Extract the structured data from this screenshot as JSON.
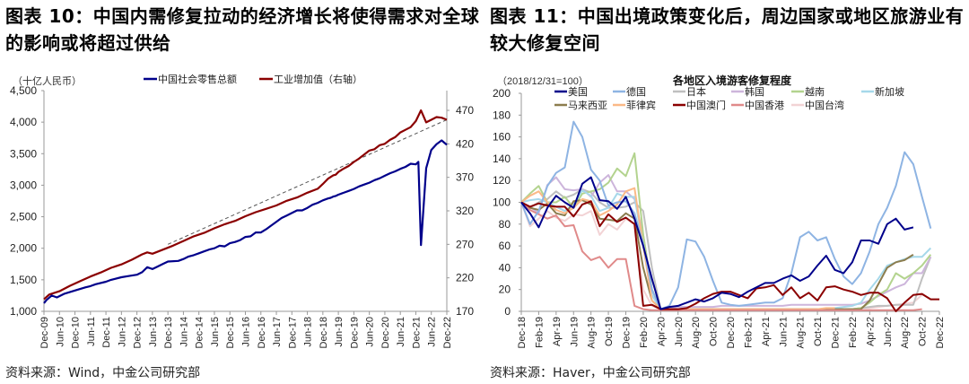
{
  "figures": [
    {
      "title_line1": "图表 10：中国内需修复拉动的经济增长将使得需求对全球",
      "title_line2": "的影响或将超过供给",
      "source": "资料来源：Wind，中金公司研究部"
    },
    {
      "title_line1": "图表 11：中国出境政策变化后，周边国家或地区旅游业有",
      "title_line2": "较大修复空间",
      "source": "资料来源：Haver，中金公司研究部"
    }
  ],
  "chart_data": [
    {
      "type": "line",
      "title": "",
      "unit_label": "（十亿人民币）",
      "ylim": [
        1000,
        4500
      ],
      "y_ticks": [
        "1,000",
        "1,500",
        "2,000",
        "2,500",
        "3,000",
        "3,500",
        "4,000",
        "4,500"
      ],
      "y2lim": [
        170,
        490
      ],
      "y2_ticks": [
        "170",
        "220",
        "270",
        "320",
        "370",
        "420",
        "470"
      ],
      "x_ticks": [
        "Dec-09",
        "Jun-10",
        "Dec-10",
        "Jun-11",
        "Dec-11",
        "Jun-12",
        "Dec-12",
        "Jun-13",
        "Dec-13",
        "Jun-14",
        "Dec-14",
        "Jun-15",
        "Dec-15",
        "Jun-16",
        "Dec-16",
        "Jun-17",
        "Dec-17",
        "Jun-18",
        "Dec-18",
        "Jun-19",
        "Dec-19",
        "Jun-20",
        "Dec-20",
        "Jun-21",
        "Dec-21",
        "Jun-22",
        "Dec-22"
      ],
      "legend_position": "top",
      "series": [
        {
          "name": "中国社会零售总额",
          "axis": "left",
          "color": "#00008B",
          "x": [
            0,
            1,
            3,
            5,
            8,
            12,
            16,
            18,
            20,
            24,
            26,
            30,
            33,
            36,
            38,
            40,
            42,
            44,
            46,
            48,
            52,
            54,
            56,
            58,
            60,
            62,
            64,
            66,
            68,
            70,
            72,
            74,
            76,
            78,
            80,
            82,
            84,
            86,
            88,
            90,
            92,
            94,
            96,
            98,
            100,
            102,
            104,
            106,
            108,
            110,
            111,
            112,
            113,
            114,
            116,
            118,
            120,
            122,
            124,
            126,
            128,
            130,
            132,
            134,
            136,
            138,
            140,
            142,
            144,
            145,
            146,
            148,
            150,
            152,
            154,
            156
          ],
          "y": [
            1130,
            1180,
            1250,
            1220,
            1280,
            1330,
            1380,
            1400,
            1430,
            1470,
            1500,
            1540,
            1560,
            1580,
            1620,
            1700,
            1670,
            1710,
            1750,
            1790,
            1800,
            1830,
            1870,
            1890,
            1920,
            1950,
            1980,
            2000,
            2040,
            2030,
            2080,
            2100,
            2130,
            2180,
            2190,
            2250,
            2250,
            2300,
            2360,
            2420,
            2480,
            2520,
            2560,
            2600,
            2600,
            2640,
            2690,
            2720,
            2760,
            2790,
            2800,
            2820,
            2830,
            2850,
            2880,
            2910,
            2940,
            2980,
            3010,
            3040,
            3080,
            3110,
            3150,
            3190,
            3220,
            3260,
            3290,
            3340,
            3330,
            3370,
            2050,
            3270,
            3560,
            3650,
            3710,
            3640
          ]
        },
        {
          "name": "工业增加值（右轴）",
          "axis": "right",
          "color": "#8B0000",
          "x": [
            0,
            2,
            6,
            10,
            14,
            18,
            22,
            26,
            30,
            34,
            38,
            40,
            42,
            46,
            50,
            54,
            58,
            62,
            66,
            70,
            74,
            78,
            82,
            86,
            90,
            94,
            98,
            102,
            106,
            108,
            110,
            112,
            113,
            114,
            116,
            118,
            120,
            122,
            124,
            126,
            128,
            130,
            132,
            134,
            136,
            138,
            140,
            142,
            144,
            146,
            148,
            150,
            152,
            154,
            156
          ],
          "y": [
            188,
            195,
            200,
            208,
            215,
            222,
            228,
            235,
            240,
            247,
            255,
            258,
            256,
            262,
            268,
            275,
            282,
            287,
            294,
            300,
            305,
            312,
            318,
            323,
            328,
            335,
            340,
            347,
            353,
            360,
            368,
            373,
            374,
            378,
            383,
            387,
            393,
            398,
            404,
            410,
            412,
            418,
            420,
            426,
            430,
            437,
            441,
            445,
            454,
            470,
            452,
            456,
            460,
            459,
            456
          ]
        },
        {
          "name": "trend",
          "axis": "right",
          "color": "#555555",
          "x": [
            48,
            156
          ],
          "y": [
            270,
            456
          ]
        }
      ]
    },
    {
      "type": "line",
      "title": "各地区入境游客修复程度",
      "unit_label": "（2018/12/31=100）",
      "ylim": [
        0,
        200
      ],
      "y_ticks": [
        "0",
        "20",
        "40",
        "60",
        "80",
        "100",
        "120",
        "140",
        "160",
        "180",
        "200"
      ],
      "x_ticks": [
        "Dec-18",
        "Feb-19",
        "Apr-19",
        "Jun-19",
        "Aug-19",
        "Oct-19",
        "Dec-19",
        "Feb-20",
        "Apr-20",
        "Jun-20",
        "Aug-20",
        "Oct-20",
        "Dec-20",
        "Feb-21",
        "Apr-21",
        "Jun-21",
        "Aug-21",
        "Oct-21",
        "Dec-21",
        "Feb-22",
        "Apr-22",
        "Jun-22",
        "Aug-22",
        "Oct-22",
        "Dec-22"
      ],
      "legend_position": "top",
      "series": [
        {
          "name": "美国",
          "color": "#00008B",
          "values": [
            100,
            90,
            77,
            95,
            106,
            100,
            95,
            117,
            123,
            102,
            101,
            94,
            105,
            85,
            60,
            30,
            2,
            4,
            5,
            8,
            11,
            9,
            12,
            17,
            16,
            13,
            18,
            22,
            26,
            26,
            30,
            33,
            28,
            32,
            42,
            51,
            38,
            35,
            45,
            65,
            65,
            62,
            80,
            85,
            75,
            77
          ]
        },
        {
          "name": "德国",
          "color": "#8EB4E3",
          "values": [
            100,
            80,
            92,
            115,
            127,
            132,
            174,
            160,
            130,
            120,
            97,
            100,
            101,
            90,
            62,
            20,
            2,
            5,
            22,
            66,
            64,
            50,
            28,
            8,
            6,
            5,
            6,
            7,
            8,
            8,
            12,
            35,
            68,
            73,
            65,
            68,
            48,
            32,
            25,
            35,
            55,
            80,
            95,
            115,
            146,
            135,
            105,
            76
          ]
        },
        {
          "name": "日本",
          "color": "#BFBFBF",
          "values": [
            100,
            95,
            100,
            103,
            110,
            104,
            107,
            112,
            109,
            100,
            95,
            95,
            96,
            100,
            92,
            40,
            2,
            2,
            2,
            2,
            2,
            2,
            2,
            2,
            2,
            2,
            2,
            2,
            2,
            2,
            2,
            2,
            2,
            2,
            2,
            2,
            2,
            2,
            2,
            3,
            4,
            5,
            5,
            6,
            6,
            6,
            30,
            50
          ]
        },
        {
          "name": "韩国",
          "color": "#CDB5DB",
          "values": [
            100,
            96,
            90,
            116,
            123,
            112,
            111,
            112,
            105,
            118,
            125,
            110,
            110,
            103,
            70,
            20,
            2,
            3,
            4,
            4,
            4,
            4,
            4,
            5,
            5,
            5,
            5,
            5,
            5,
            5,
            5,
            6,
            6,
            6,
            6,
            6,
            6,
            6,
            6,
            7,
            10,
            14,
            18,
            22,
            25,
            35,
            35,
            50
          ]
        },
        {
          "name": "越南",
          "color": "#B3D38E",
          "values": [
            100,
            108,
            115,
            100,
            100,
            105,
            95,
            108,
            110,
            112,
            118,
            131,
            124,
            145,
            70,
            20,
            2,
            2,
            2,
            2,
            2,
            2,
            2,
            2,
            2,
            2,
            2,
            2,
            2,
            2,
            2,
            2,
            2,
            2,
            2,
            2,
            2,
            2,
            2,
            3,
            8,
            15,
            20,
            35,
            30,
            35,
            42,
            52
          ]
        },
        {
          "name": "新加坡",
          "color": "#A6D8EA",
          "values": [
            100,
            102,
            103,
            100,
            96,
            92,
            98,
            111,
            106,
            92,
            95,
            108,
            105,
            105,
            60,
            15,
            2,
            2,
            2,
            2,
            2,
            2,
            2,
            2,
            2,
            2,
            2,
            2,
            2,
            2,
            2,
            2,
            2,
            2,
            2,
            2,
            3,
            4,
            5,
            8,
            20,
            30,
            42,
            45,
            48,
            50,
            50,
            58
          ]
        },
        {
          "name": "马来西亚",
          "color": "#8C7D4E",
          "values": [
            100,
            95,
            93,
            99,
            90,
            88,
            101,
            102,
            98,
            85,
            84,
            83,
            90,
            85,
            40,
            10,
            2,
            2,
            2,
            2,
            2,
            2,
            2,
            2,
            2,
            2,
            2,
            2,
            2,
            2,
            2,
            2,
            2,
            2,
            2,
            2,
            2,
            2,
            2,
            2,
            10,
            25,
            40,
            45,
            47,
            52
          ]
        },
        {
          "name": "菲律宾",
          "color": "#FBB987",
          "values": [
            100,
            106,
            110,
            100,
            93,
            90,
            95,
            103,
            101,
            88,
            92,
            98,
            110,
            113,
            60,
            10,
            2,
            2,
            2,
            2,
            2,
            2,
            2,
            2,
            2,
            2,
            2,
            2,
            2,
            2,
            2,
            2,
            2,
            2,
            2,
            3,
            3
          ]
        },
        {
          "name": "中国澳门",
          "color": "#8B0000",
          "values": [
            100,
            96,
            99,
            97,
            96,
            96,
            87,
            98,
            101,
            78,
            89,
            82,
            86,
            80,
            5,
            6,
            2,
            2,
            2,
            3,
            7,
            12,
            16,
            18,
            18,
            15,
            12,
            21,
            22,
            24,
            15,
            22,
            12,
            17,
            10,
            22,
            23,
            20,
            18,
            15,
            17,
            17,
            12,
            0,
            8,
            15,
            16,
            11,
            11
          ]
        },
        {
          "name": "中国香港",
          "color": "#E08A8A",
          "values": [
            100,
            93,
            89,
            85,
            88,
            78,
            79,
            55,
            47,
            50,
            40,
            48,
            48,
            5,
            2,
            1,
            1,
            1,
            1,
            1,
            1,
            1,
            1,
            1,
            1,
            1,
            1,
            1,
            1,
            1,
            1,
            1,
            1,
            1,
            1,
            1,
            1,
            1,
            1,
            1,
            1,
            1,
            1,
            1,
            1,
            1,
            2
          ]
        },
        {
          "name": "中国台湾",
          "color": "#F2D3D5",
          "values": [
            100,
            78,
            85,
            92,
            86,
            83,
            89,
            88,
            92,
            70,
            80,
            75,
            85,
            80,
            20,
            5,
            2,
            2,
            2,
            2,
            2,
            2,
            2,
            2,
            2,
            2,
            2,
            2,
            2,
            2,
            2,
            2,
            2,
            2,
            2,
            2,
            2,
            2,
            2,
            3,
            3,
            4,
            5,
            6,
            7,
            8,
            15
          ]
        }
      ]
    }
  ]
}
